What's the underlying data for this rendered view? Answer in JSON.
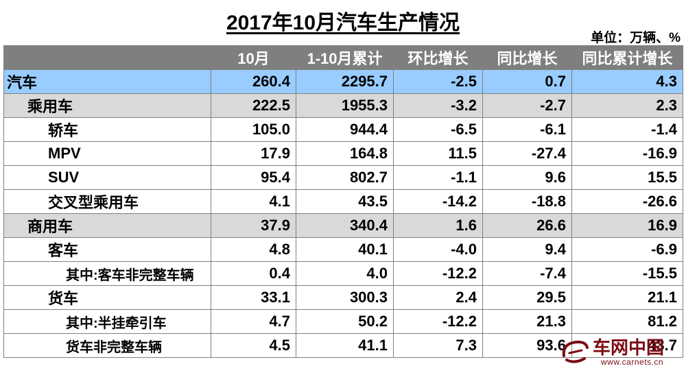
{
  "title": "2017年10月汽车生产情况",
  "unit": "单位：万辆、%",
  "columns": [
    "",
    "10月",
    "1-10月累计",
    "环比增长",
    "同比增长",
    "同比累计增长"
  ],
  "rows": [
    {
      "label": "汽车",
      "values": [
        "260.4",
        "2295.7",
        "-2.5",
        "0.7",
        "4.3"
      ]
    },
    {
      "label": "乘用车",
      "values": [
        "222.5",
        "1955.3",
        "-3.2",
        "-2.7",
        "2.3"
      ]
    },
    {
      "label": "轿车",
      "values": [
        "105.0",
        "944.4",
        "-6.5",
        "-6.1",
        "-1.4"
      ]
    },
    {
      "label": "MPV",
      "values": [
        "17.9",
        "164.8",
        "11.5",
        "-27.4",
        "-16.9"
      ]
    },
    {
      "label": "SUV",
      "values": [
        "95.4",
        "802.7",
        "-1.1",
        "9.6",
        "15.5"
      ]
    },
    {
      "label": "交叉型乘用车",
      "values": [
        "4.1",
        "43.5",
        "-14.2",
        "-18.8",
        "-26.6"
      ]
    },
    {
      "label": "商用车",
      "values": [
        "37.9",
        "340.4",
        "1.6",
        "26.6",
        "16.9"
      ]
    },
    {
      "label": "客车",
      "values": [
        "4.8",
        "40.1",
        "-4.0",
        "9.4",
        "-6.9"
      ]
    },
    {
      "label": "其中:客车非完整车辆",
      "values": [
        "0.4",
        "4.0",
        "-12.2",
        "-7.4",
        "-15.5"
      ]
    },
    {
      "label": "货车",
      "values": [
        "33.1",
        "300.3",
        "2.4",
        "29.5",
        "21.1"
      ]
    },
    {
      "label": "其中:半挂牵引车",
      "values": [
        "4.7",
        "50.2",
        "-12.2",
        "21.3",
        "81.2"
      ]
    },
    {
      "label": "货车非完整车辆",
      "values": [
        "4.5",
        "41.1",
        "7.3",
        "93.6",
        "43.7"
      ]
    }
  ],
  "watermark": {
    "name": "车网中国",
    "url": "www.carnets.cn"
  },
  "colors": {
    "header_bg": "#7f7f7f",
    "total_row_bg": "#99ccff",
    "group_row_bg": "#d9d9d9",
    "watermark": "#7a0c14"
  }
}
